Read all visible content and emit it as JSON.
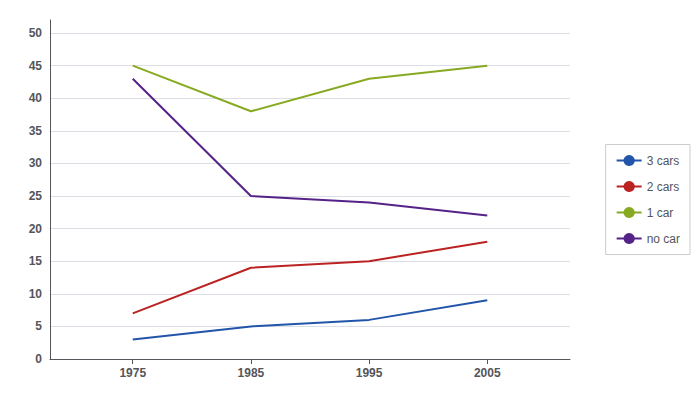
{
  "chart_data": {
    "type": "line",
    "x": [
      1975,
      1985,
      1995,
      2005
    ],
    "series": [
      {
        "name": "3 cars",
        "color": "#2255aa",
        "values": [
          3,
          5,
          6,
          9
        ]
      },
      {
        "name": "2 cars",
        "color": "#bb2222",
        "values": [
          7,
          14,
          15,
          18
        ]
      },
      {
        "name": "1 car",
        "color": "#88aa22",
        "values": [
          45,
          38,
          43,
          45
        ]
      },
      {
        "name": "no car",
        "color": "#552288",
        "values": [
          43,
          25,
          24,
          22
        ]
      }
    ],
    "xlim": [
      1968,
      2012
    ],
    "xticks": [
      1975,
      1985,
      1995,
      2005
    ],
    "ylim": [
      0,
      52
    ],
    "yticks": [
      0,
      5,
      10,
      15,
      20,
      25,
      30,
      35,
      40,
      45,
      50
    ],
    "grid": "y",
    "legend": "right"
  }
}
